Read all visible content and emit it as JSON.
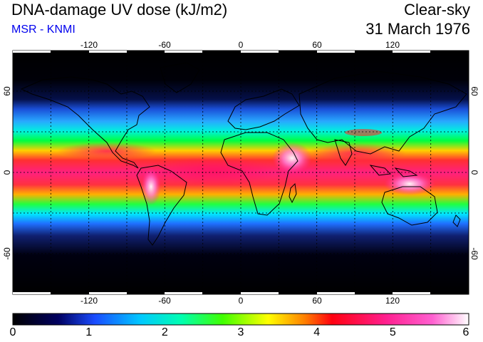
{
  "header": {
    "title": "DNA-damage UV dose (kJ/m2)",
    "subtitle": "MSR - KNMI",
    "condition": "Clear-sky",
    "date": "31 March 1976"
  },
  "map": {
    "lon_ticks_top": [
      "-120",
      "-60",
      "0",
      "60",
      "120"
    ],
    "lon_ticks_bottom": [
      "-120",
      "-60",
      "0",
      "60",
      "120"
    ],
    "lat_ticks_left": [
      "60",
      "0",
      "-60"
    ],
    "lat_ticks_right": [
      "60",
      "0",
      "-60"
    ],
    "lon_range": [
      -180,
      180
    ],
    "lat_range": [
      -90,
      90
    ],
    "grid": true
  },
  "colorbar": {
    "labels": [
      "0",
      "1",
      "2",
      "3",
      "4",
      "5",
      "6"
    ],
    "range": [
      0,
      6
    ],
    "colors": [
      "#000000",
      "#000080",
      "#1a5cff",
      "#00d8ff",
      "#00ff4c",
      "#ffff00",
      "#ff2020",
      "#ff2aa0",
      "#ffffff"
    ]
  }
}
